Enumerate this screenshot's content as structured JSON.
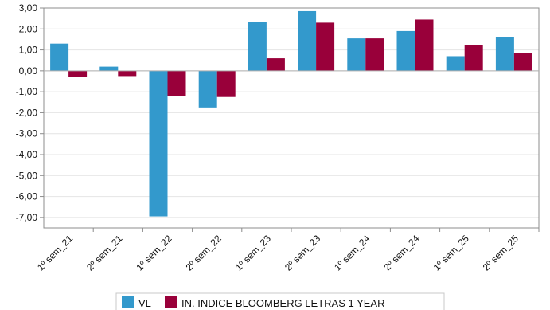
{
  "chart_data": {
    "type": "bar",
    "categories": [
      "1º sem_21",
      "2º sem_21",
      "1º sem_22",
      "2º sem_22",
      "1º sem_23",
      "2º sem_23",
      "1º sem_24",
      "2º sem_24",
      "1º sem_25",
      "2º sem_25"
    ],
    "series": [
      {
        "name": "VL",
        "color": "#3399cc",
        "values": [
          1.3,
          0.2,
          -6.95,
          -1.75,
          2.35,
          2.85,
          1.55,
          1.9,
          0.7,
          1.6
        ]
      },
      {
        "name": "IN. INDICE BLOOMBERG LETRAS 1 YEAR",
        "color": "#99003a",
        "values": [
          -0.3,
          -0.25,
          -1.2,
          -1.25,
          0.6,
          2.3,
          1.55,
          2.45,
          1.25,
          0.85
        ]
      }
    ],
    "ylim": [
      -7.5,
      3.0
    ],
    "yticks": [
      3,
      2,
      1,
      0,
      -1,
      -2,
      -3,
      -4,
      -5,
      -6,
      -7
    ],
    "ytick_labels": [
      "3,00",
      "2,00",
      "1,00",
      "0,00",
      "-1,00",
      "-2,00",
      "-3,00",
      "-4,00",
      "-5,00",
      "-6,00",
      "-7,00"
    ],
    "grid": true,
    "legend": "bottom-center"
  }
}
